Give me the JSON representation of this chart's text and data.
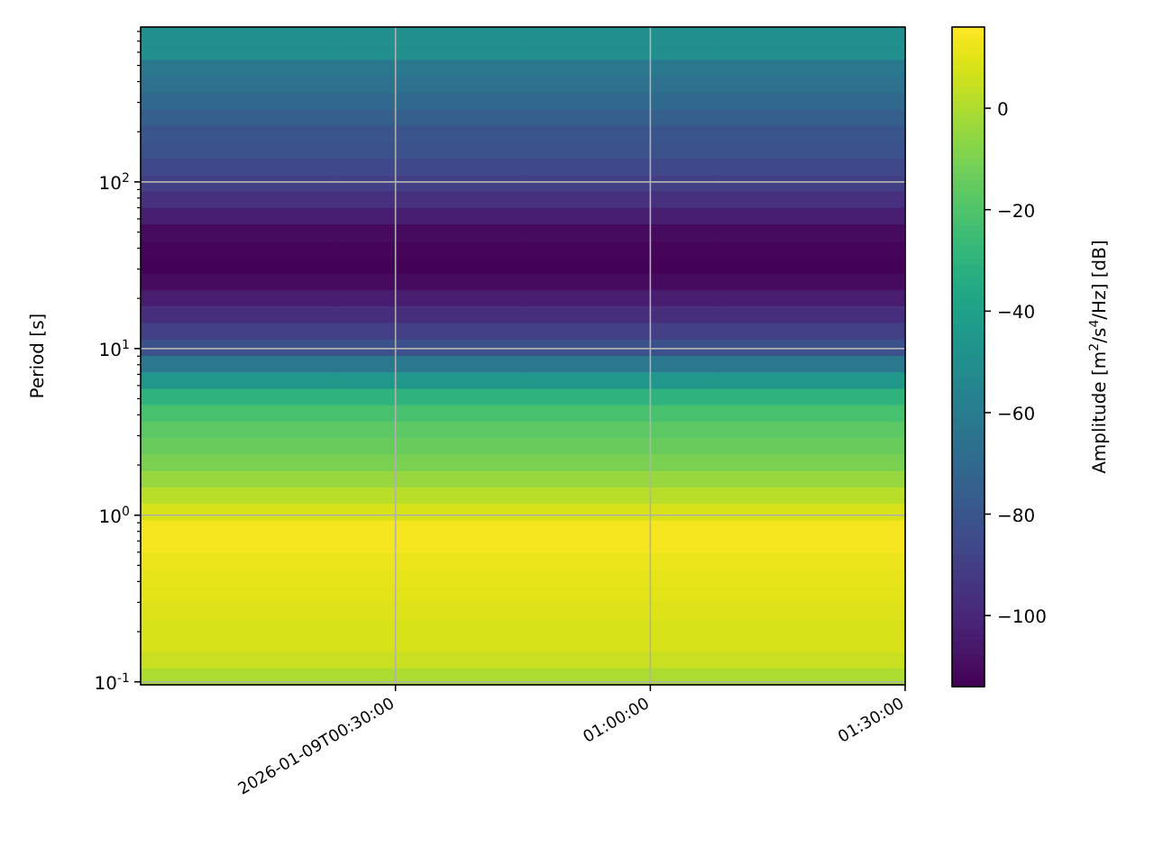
{
  "chart_data": {
    "type": "heatmap",
    "ylabel": "Period [s]",
    "clabel": "Amplitude [m$^{2}$/s$^{4}$/Hz] [dB]",
    "xlim": [
      "2026-01-09T00:00",
      "2026-01-09T01:30"
    ],
    "xticks": [
      {
        "value": "2026-01-09T00:30",
        "label": "2026-01-09T00:30:00"
      },
      {
        "value": "2026-01-09T01:00",
        "label": "01:00:00"
      },
      {
        "value": "2026-01-09T01:30",
        "label": "01:30:00"
      }
    ],
    "ylim": [
      0.096,
      850
    ],
    "yticks": [
      {
        "value": 0.1,
        "label": "10$^{-1}$"
      },
      {
        "value": 0.2,
        "label": null
      },
      {
        "value": 0.3,
        "label": null
      },
      {
        "value": 0.4,
        "label": null
      },
      {
        "value": 0.5,
        "label": null
      },
      {
        "value": 0.6,
        "label": null
      },
      {
        "value": 0.7,
        "label": null
      },
      {
        "value": 0.8,
        "label": null
      },
      {
        "value": 0.9,
        "label": null
      },
      {
        "value": 1,
        "label": "10$^{0}$"
      },
      {
        "value": 2,
        "label": null
      },
      {
        "value": 3,
        "label": null
      },
      {
        "value": 4,
        "label": null
      },
      {
        "value": 5,
        "label": null
      },
      {
        "value": 6,
        "label": null
      },
      {
        "value": 7,
        "label": null
      },
      {
        "value": 8,
        "label": null
      },
      {
        "value": 9,
        "label": null
      },
      {
        "value": 10,
        "label": "10$^{1}$"
      },
      {
        "value": 20,
        "label": null
      },
      {
        "value": 30,
        "label": null
      },
      {
        "value": 40,
        "label": null
      },
      {
        "value": 50,
        "label": null
      },
      {
        "value": 60,
        "label": null
      },
      {
        "value": 70,
        "label": null
      },
      {
        "value": 80,
        "label": null
      },
      {
        "value": 90,
        "label": null
      },
      {
        "value": 100,
        "label": "10$^{2}$"
      },
      {
        "value": 200,
        "label": null
      },
      {
        "value": 300,
        "label": null
      },
      {
        "value": 400,
        "label": null
      },
      {
        "value": 500,
        "label": null
      },
      {
        "value": 600,
        "label": null
      },
      {
        "value": 700,
        "label": null
      },
      {
        "value": 800,
        "label": null
      }
    ],
    "log": "y",
    "grid": true,
    "clim": [
      -114,
      16
    ],
    "cticks": [
      0,
      {
        "value": -20,
        "label": "−20"
      },
      {
        "value": -40,
        "label": "−40"
      },
      {
        "value": -60,
        "label": "−60"
      },
      {
        "value": -80,
        "label": "−80"
      },
      {
        "value": -100,
        "label": "−100"
      }
    ],
    "cells": [
      [
        -50,
        -50,
        -50,
        -50
      ],
      [
        -50,
        -50,
        -50,
        -50
      ],
      [
        -62,
        -62,
        -62,
        -62
      ],
      [
        -66,
        -66,
        -66,
        -66
      ],
      [
        -70,
        -70,
        -70,
        -70
      ],
      [
        -75,
        -75,
        -75,
        -75
      ],
      [
        -80,
        -80,
        -80,
        -80
      ],
      [
        -82,
        -82,
        -82,
        -82
      ],
      [
        -86,
        -86,
        -86,
        -86
      ],
      [
        -90,
        -90,
        -90,
        -90
      ],
      [
        -96,
        -96,
        -96,
        -96
      ],
      [
        -103,
        -103,
        -103,
        -103
      ],
      [
        -110,
        -110,
        -110,
        -110
      ],
      [
        -112,
        -112,
        -112,
        -112
      ],
      [
        -113,
        -113,
        -113,
        -113
      ],
      [
        -110,
        -110,
        -110,
        -110
      ],
      [
        -104,
        -104,
        -104,
        -104
      ],
      [
        -97,
        -97,
        -97,
        -97
      ],
      [
        -90,
        -90,
        -90,
        -90
      ],
      [
        -82,
        -82,
        -82,
        -82
      ],
      [
        -62,
        -62,
        -62,
        -62
      ],
      [
        -45,
        -45,
        -45,
        -45
      ],
      [
        -30,
        -30,
        -30,
        -30
      ],
      [
        -22,
        -22,
        -22,
        -22
      ],
      [
        -17,
        -17,
        -17,
        -17
      ],
      [
        -14,
        -14,
        -14,
        -14
      ],
      [
        -10,
        -10,
        -10,
        -10
      ],
      [
        -4,
        -4,
        -4,
        -4
      ],
      [
        2,
        2,
        2,
        2
      ],
      [
        8,
        8,
        8,
        8
      ],
      [
        14,
        14,
        14,
        14
      ],
      [
        14,
        14,
        14,
        14
      ],
      [
        12,
        12,
        12,
        12
      ],
      [
        11,
        11,
        11,
        11
      ],
      [
        10,
        10,
        10,
        10
      ],
      [
        9,
        9,
        9,
        9
      ],
      [
        8,
        8,
        8,
        8
      ],
      [
        8,
        8,
        8,
        8
      ],
      [
        5,
        5,
        5,
        5
      ],
      [
        0,
        0,
        0,
        0
      ]
    ]
  }
}
